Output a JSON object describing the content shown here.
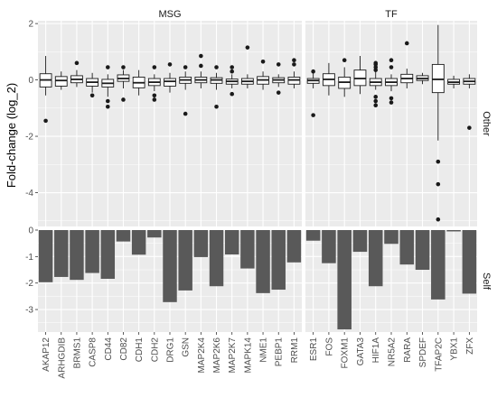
{
  "chart_data": {
    "type": "faceted boxplot + bar",
    "ylabel": "Fold-change (log_2)",
    "columns": [
      "MSG",
      "TF"
    ],
    "rows": [
      "Other",
      "Self"
    ],
    "row_ylims": {
      "Other": [
        -5.2,
        2.1
      ],
      "Self": [
        0,
        -3.85
      ]
    },
    "row_yticks": {
      "Other": [
        2,
        0,
        -2,
        -4
      ],
      "Self": [
        0,
        -1,
        -2,
        -3
      ]
    },
    "grid": true,
    "facets": {
      "MSG": {
        "categories": [
          "AKAP12",
          "ARHGDIB",
          "BRMS1",
          "CASP8",
          "CD44",
          "CD82",
          "CDH1",
          "CDH2",
          "DRG1",
          "GSN",
          "MAP2K4",
          "MAP2K6",
          "MAP2K7",
          "MAPK14",
          "NME1",
          "PEBP1",
          "RRM1"
        ],
        "Other_boxes": [
          {
            "q1": -0.25,
            "med": 0.0,
            "q3": 0.22,
            "lo": -0.55,
            "hi": 0.85,
            "out": [
              -1.45
            ]
          },
          {
            "q1": -0.22,
            "med": -0.02,
            "q3": 0.12,
            "lo": -0.35,
            "hi": 0.3,
            "out": []
          },
          {
            "q1": -0.1,
            "med": 0.02,
            "q3": 0.15,
            "lo": -0.25,
            "hi": 0.35,
            "out": [
              0.6
            ]
          },
          {
            "q1": -0.22,
            "med": -0.08,
            "q3": 0.05,
            "lo": -0.45,
            "hi": 0.25,
            "out": [
              -0.55
            ]
          },
          {
            "q1": -0.25,
            "med": -0.12,
            "q3": 0.02,
            "lo": -0.6,
            "hi": 0.2,
            "out": [
              -0.75,
              -0.95,
              0.45
            ]
          },
          {
            "q1": -0.05,
            "med": 0.05,
            "q3": 0.18,
            "lo": -0.3,
            "hi": 0.35,
            "out": [
              -0.7,
              0.45
            ]
          },
          {
            "q1": -0.28,
            "med": -0.1,
            "q3": 0.1,
            "lo": -0.55,
            "hi": 0.35,
            "out": []
          },
          {
            "q1": -0.2,
            "med": -0.08,
            "q3": 0.05,
            "lo": -0.4,
            "hi": 0.2,
            "out": [
              -0.55,
              -0.7,
              0.45
            ]
          },
          {
            "q1": -0.22,
            "med": -0.05,
            "q3": 0.05,
            "lo": -0.45,
            "hi": 0.25,
            "out": [
              0.55
            ]
          },
          {
            "q1": -0.12,
            "med": 0.0,
            "q3": 0.1,
            "lo": -0.35,
            "hi": 0.3,
            "out": [
              -1.2,
              0.45
            ]
          },
          {
            "q1": -0.1,
            "med": 0.0,
            "q3": 0.1,
            "lo": -0.3,
            "hi": 0.3,
            "out": [
              0.85,
              0.5
            ]
          },
          {
            "q1": -0.12,
            "med": 0.0,
            "q3": 0.08,
            "lo": -0.35,
            "hi": 0.25,
            "out": [
              -0.95,
              0.45
            ]
          },
          {
            "q1": -0.15,
            "med": -0.05,
            "q3": 0.03,
            "lo": -0.3,
            "hi": 0.2,
            "out": [
              -0.5,
              0.3,
              0.45
            ]
          },
          {
            "q1": -0.15,
            "med": -0.05,
            "q3": 0.05,
            "lo": -0.3,
            "hi": 0.2,
            "out": [
              1.15
            ]
          },
          {
            "q1": -0.15,
            "med": 0.0,
            "q3": 0.12,
            "lo": -0.35,
            "hi": 0.3,
            "out": [
              0.65
            ]
          },
          {
            "q1": -0.1,
            "med": 0.0,
            "q3": 0.08,
            "lo": -0.25,
            "hi": 0.2,
            "out": [
              -0.45,
              0.55
            ]
          },
          {
            "q1": -0.15,
            "med": 0.0,
            "q3": 0.1,
            "lo": -0.3,
            "hi": 0.3,
            "out": [
              0.7,
              0.55
            ]
          }
        ],
        "Self_values": [
          -1.97,
          -1.77,
          -1.88,
          -1.62,
          -1.84,
          -0.43,
          -0.93,
          -0.28,
          -2.72,
          -2.28,
          -1.02,
          -2.12,
          -0.92,
          -1.45,
          -2.38,
          -2.25,
          -1.22
        ]
      },
      "TF": {
        "categories": [
          "ESR1",
          "FOS",
          "FOXM1",
          "GATA3",
          "HIF1A",
          "NR5A2",
          "RARA",
          "SPDEF",
          "TFAP2C",
          "YBX1",
          "ZFX"
        ],
        "Other_boxes": [
          {
            "q1": -0.12,
            "med": -0.02,
            "q3": 0.05,
            "lo": -0.3,
            "hi": 0.25,
            "out": [
              -1.25,
              0.3
            ]
          },
          {
            "q1": -0.2,
            "med": 0.02,
            "q3": 0.22,
            "lo": -0.55,
            "hi": 0.6,
            "out": []
          },
          {
            "q1": -0.3,
            "med": -0.08,
            "q3": 0.1,
            "lo": -0.6,
            "hi": 0.45,
            "out": [
              0.7
            ]
          },
          {
            "q1": -0.2,
            "med": 0.05,
            "q3": 0.35,
            "lo": -0.5,
            "hi": 0.85,
            "out": []
          },
          {
            "q1": -0.2,
            "med": -0.08,
            "q3": 0.05,
            "lo": -0.35,
            "hi": 0.3,
            "out": [
              -0.6,
              -0.75,
              -0.9,
              0.35,
              0.45,
              0.55,
              0.6
            ]
          },
          {
            "q1": -0.2,
            "med": -0.08,
            "q3": 0.05,
            "lo": -0.4,
            "hi": 0.2,
            "out": [
              -0.65,
              -0.8,
              0.45,
              0.7
            ]
          },
          {
            "q1": -0.1,
            "med": 0.05,
            "q3": 0.2,
            "lo": -0.3,
            "hi": 0.4,
            "out": [
              1.3
            ]
          },
          {
            "q1": -0.02,
            "med": 0.05,
            "q3": 0.15,
            "lo": -0.15,
            "hi": 0.25,
            "out": []
          },
          {
            "q1": -0.45,
            "med": 0.02,
            "q3": 0.55,
            "lo": -2.15,
            "hi": 1.95,
            "out": [
              -2.9,
              -3.7,
              -4.95
            ]
          },
          {
            "q1": -0.15,
            "med": -0.08,
            "q3": 0.02,
            "lo": -0.3,
            "hi": 0.15,
            "out": []
          },
          {
            "q1": -0.15,
            "med": -0.05,
            "q3": 0.05,
            "lo": -0.3,
            "hi": 0.2,
            "out": [
              -1.7
            ]
          }
        ],
        "Self_values": [
          -0.4,
          -1.25,
          -3.75,
          -0.82,
          -2.12,
          -0.52,
          -1.3,
          -1.5,
          -2.62,
          -0.05,
          -2.4
        ]
      }
    }
  },
  "colors": {
    "panel_bg": "#ebebeb",
    "grid": "#ffffff",
    "bar_fill": "#595959",
    "box_fill": "#ffffff",
    "box_line": "#1a1a1a",
    "strip_bg": "#d9d9d9",
    "text": "#4d4d4d"
  }
}
